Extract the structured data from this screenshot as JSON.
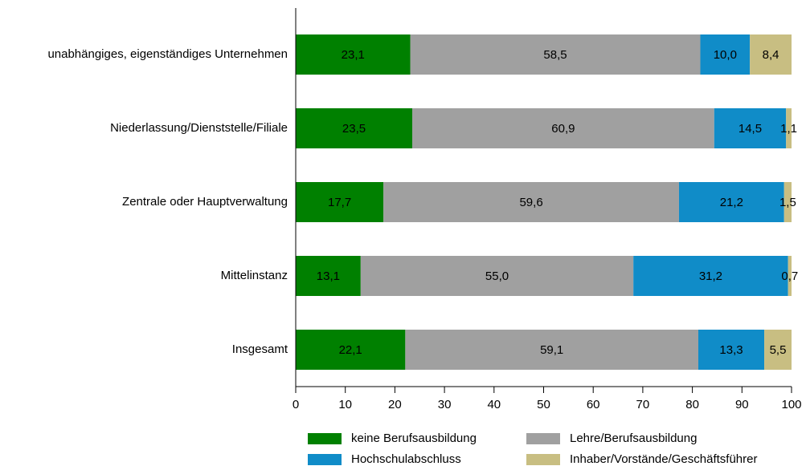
{
  "chart_data": {
    "type": "stacked_barh",
    "categories": [
      "unabhängiges, eigenständiges Unternehmen",
      "Niederlassung/Dienststelle/Filiale",
      "Zentrale oder Hauptverwaltung",
      "Mittelinstanz",
      "Insgesamt"
    ],
    "series": [
      {
        "name": "keine Berufsausbildung",
        "color": "#008000",
        "values": [
          23.1,
          23.5,
          17.7,
          13.1,
          22.1
        ],
        "value_labels": [
          "23,1",
          "23,5",
          "17,7",
          "13,1",
          "22,1"
        ]
      },
      {
        "name": "Lehre/Berufsausbildung",
        "color": "#a0a0a0",
        "values": [
          58.5,
          60.9,
          59.6,
          55.0,
          59.1
        ],
        "value_labels": [
          "58,5",
          "60,9",
          "59,6",
          "55,0",
          "59,1"
        ]
      },
      {
        "name": "Hochschulabschluss",
        "color": "#108cc8",
        "values": [
          10.0,
          14.5,
          21.2,
          31.2,
          13.3
        ],
        "value_labels": [
          "10,0",
          "14,5",
          "21,2",
          "31,2",
          "13,3"
        ]
      },
      {
        "name": "Inhaber/Vorstände/Geschäftsführer",
        "color": "#c8be82",
        "values": [
          8.4,
          1.1,
          1.5,
          0.7,
          5.5
        ],
        "value_labels": [
          "8,4",
          "1,1",
          "1,5",
          "0,7",
          "5,5"
        ]
      }
    ],
    "xlim": [
      0,
      100
    ],
    "xticks": [
      0,
      10,
      20,
      30,
      40,
      50,
      60,
      70,
      80,
      90,
      100
    ]
  }
}
